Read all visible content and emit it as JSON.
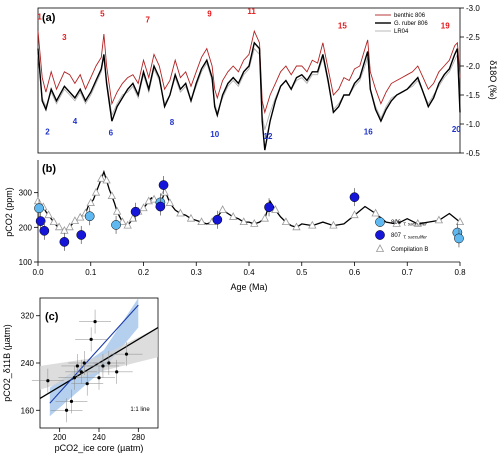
{
  "figure": {
    "panel_labels": [
      "(a)",
      "(b)",
      "(c)"
    ]
  },
  "chart_data": [
    {
      "panel": "(a)",
      "type": "line",
      "x_range": [
        0,
        0.8
      ],
      "y_label": "δ18O (‰)",
      "y_range": [
        -3.0,
        -0.5
      ],
      "y_reversed": true,
      "y_ticks": [
        -3.0,
        -2.5,
        -2.0,
        -1.5,
        -1.0,
        -0.5
      ],
      "legend_position": "top-right",
      "colors": {
        "benthic": "#b22222",
        "ruber": "#000000",
        "lr04": "#b0b0b0",
        "mis_even": "#1f33c9",
        "mis_odd": "#e31a1c"
      },
      "series": [
        {
          "name": "benthic 806",
          "x": [
            0.0,
            0.008,
            0.015,
            0.025,
            0.035,
            0.05,
            0.06,
            0.07,
            0.08,
            0.09,
            0.1,
            0.11,
            0.12,
            0.125,
            0.13,
            0.14,
            0.15,
            0.16,
            0.17,
            0.18,
            0.19,
            0.2,
            0.21,
            0.22,
            0.23,
            0.24,
            0.25,
            0.26,
            0.27,
            0.28,
            0.29,
            0.3,
            0.31,
            0.32,
            0.33,
            0.335,
            0.34,
            0.35,
            0.36,
            0.37,
            0.38,
            0.39,
            0.4,
            0.41,
            0.42,
            0.425,
            0.43,
            0.44,
            0.45,
            0.46,
            0.47,
            0.48,
            0.49,
            0.5,
            0.51,
            0.52,
            0.53,
            0.54,
            0.55,
            0.56,
            0.57,
            0.58,
            0.59,
            0.6,
            0.61,
            0.62,
            0.625,
            0.63,
            0.64,
            0.65,
            0.66,
            0.67,
            0.68,
            0.69,
            0.7,
            0.71,
            0.72,
            0.73,
            0.74,
            0.75,
            0.76,
            0.77,
            0.78,
            0.79,
            0.795,
            0.8
          ],
          "y": [
            -2.6,
            -1.8,
            -1.55,
            -1.9,
            -1.6,
            -1.9,
            -1.85,
            -1.7,
            -1.85,
            -1.6,
            -1.8,
            -2.0,
            -2.15,
            -2.55,
            -2.0,
            -1.35,
            -1.55,
            -1.7,
            -1.8,
            -1.85,
            -1.7,
            -2.1,
            -1.8,
            -2.2,
            -2.0,
            -1.6,
            -1.75,
            -2.1,
            -1.8,
            -1.9,
            -1.65,
            -1.9,
            -2.15,
            -2.3,
            -2.0,
            -1.6,
            -1.45,
            -1.75,
            -1.9,
            -2.0,
            -1.9,
            -2.1,
            -2.2,
            -2.6,
            -2.4,
            -1.4,
            -1.2,
            -1.5,
            -1.7,
            -1.9,
            -2.0,
            -1.85,
            -2.0,
            -2.0,
            -1.9,
            -2.1,
            -2.05,
            -2.4,
            -1.95,
            -1.5,
            -1.6,
            -1.8,
            -1.75,
            -1.95,
            -2.0,
            -2.3,
            -2.45,
            -1.9,
            -1.6,
            -1.35,
            -1.55,
            -1.7,
            -1.75,
            -1.8,
            -1.85,
            -1.9,
            -2.0,
            -1.8,
            -1.6,
            -1.7,
            -1.9,
            -2.0,
            -2.1,
            -2.35,
            -2.4,
            -1.8
          ]
        },
        {
          "name": "G. ruber 806",
          "x": [
            0.0,
            0.008,
            0.015,
            0.025,
            0.035,
            0.05,
            0.06,
            0.07,
            0.08,
            0.09,
            0.1,
            0.11,
            0.12,
            0.125,
            0.13,
            0.14,
            0.15,
            0.16,
            0.17,
            0.18,
            0.19,
            0.2,
            0.21,
            0.22,
            0.23,
            0.24,
            0.25,
            0.26,
            0.27,
            0.28,
            0.29,
            0.3,
            0.31,
            0.32,
            0.33,
            0.335,
            0.34,
            0.35,
            0.36,
            0.37,
            0.38,
            0.39,
            0.4,
            0.41,
            0.42,
            0.425,
            0.43,
            0.44,
            0.45,
            0.46,
            0.47,
            0.48,
            0.49,
            0.5,
            0.51,
            0.52,
            0.53,
            0.54,
            0.55,
            0.56,
            0.57,
            0.58,
            0.59,
            0.6,
            0.61,
            0.62,
            0.625,
            0.63,
            0.64,
            0.65,
            0.66,
            0.67,
            0.68,
            0.69,
            0.7,
            0.71,
            0.72,
            0.73,
            0.74,
            0.75,
            0.76,
            0.77,
            0.78,
            0.79,
            0.795,
            0.8
          ],
          "y": [
            -2.3,
            -1.4,
            -1.25,
            -1.6,
            -1.4,
            -1.65,
            -1.55,
            -1.45,
            -1.6,
            -1.4,
            -1.55,
            -1.75,
            -1.95,
            -2.2,
            -1.7,
            -1.05,
            -1.3,
            -1.45,
            -1.6,
            -1.7,
            -1.5,
            -1.9,
            -1.6,
            -2.0,
            -1.8,
            -1.3,
            -1.5,
            -1.85,
            -1.6,
            -1.7,
            -1.4,
            -1.7,
            -1.95,
            -2.1,
            -1.8,
            -1.3,
            -1.15,
            -1.5,
            -1.7,
            -1.8,
            -1.7,
            -1.9,
            -2.0,
            -2.4,
            -2.3,
            -1.05,
            -0.55,
            -1.05,
            -1.4,
            -1.65,
            -1.75,
            -1.6,
            -1.8,
            -1.85,
            -1.75,
            -1.9,
            -1.9,
            -2.2,
            -1.75,
            -1.2,
            -1.3,
            -1.5,
            -1.5,
            -1.7,
            -1.8,
            -2.1,
            -2.25,
            -1.6,
            -1.25,
            -1.05,
            -1.25,
            -1.4,
            -1.5,
            -1.55,
            -1.6,
            -1.7,
            -1.8,
            -1.55,
            -1.3,
            -1.45,
            -1.7,
            -1.85,
            -1.95,
            -2.2,
            -2.3,
            -1.2
          ]
        },
        {
          "name": "LR04",
          "x": [
            0.0,
            0.008,
            0.015,
            0.025,
            0.035,
            0.05,
            0.06,
            0.07,
            0.08,
            0.09,
            0.1,
            0.11,
            0.12,
            0.125,
            0.13,
            0.14,
            0.15,
            0.16,
            0.17,
            0.18,
            0.19,
            0.2,
            0.21,
            0.22,
            0.23,
            0.24,
            0.25,
            0.26,
            0.27,
            0.28,
            0.29,
            0.3,
            0.31,
            0.32,
            0.33,
            0.335,
            0.34,
            0.35,
            0.36,
            0.37,
            0.38,
            0.39,
            0.4,
            0.41,
            0.42,
            0.425,
            0.43,
            0.44,
            0.45,
            0.46,
            0.47,
            0.48,
            0.49,
            0.5,
            0.51,
            0.52,
            0.53,
            0.54,
            0.55,
            0.56,
            0.57,
            0.58,
            0.59,
            0.6,
            0.61,
            0.62,
            0.625,
            0.63,
            0.64,
            0.65,
            0.66,
            0.67,
            0.68,
            0.69,
            0.7,
            0.71,
            0.72,
            0.73,
            0.74,
            0.75,
            0.76,
            0.77,
            0.78,
            0.79,
            0.795,
            0.8
          ],
          "y": [
            -2.2,
            -1.45,
            -1.3,
            -1.55,
            -1.35,
            -1.6,
            -1.5,
            -1.4,
            -1.55,
            -1.35,
            -1.5,
            -1.7,
            -1.9,
            -2.15,
            -1.75,
            -1.15,
            -1.35,
            -1.5,
            -1.55,
            -1.65,
            -1.45,
            -1.85,
            -1.55,
            -1.95,
            -1.75,
            -1.35,
            -1.5,
            -1.8,
            -1.55,
            -1.65,
            -1.4,
            -1.65,
            -1.9,
            -2.05,
            -1.75,
            -1.35,
            -1.2,
            -1.45,
            -1.65,
            -1.75,
            -1.65,
            -1.85,
            -1.95,
            -2.3,
            -2.2,
            -1.15,
            -0.9,
            -1.2,
            -1.45,
            -1.65,
            -1.75,
            -1.6,
            -1.75,
            -1.8,
            -1.7,
            -1.85,
            -1.85,
            -2.15,
            -1.7,
            -1.25,
            -1.35,
            -1.5,
            -1.5,
            -1.65,
            -1.75,
            -2.0,
            -2.15,
            -1.6,
            -1.3,
            -1.1,
            -1.3,
            -1.45,
            -1.5,
            -1.55,
            -1.6,
            -1.65,
            -1.75,
            -1.55,
            -1.35,
            -1.5,
            -1.65,
            -1.8,
            -1.9,
            -2.1,
            -2.2,
            -1.3
          ]
        }
      ],
      "annotations": [
        {
          "text": "1",
          "x": 0.003,
          "y": -2.8,
          "kind": "odd"
        },
        {
          "text": "3",
          "x": 0.05,
          "y": -2.45,
          "kind": "odd"
        },
        {
          "text": "5",
          "x": 0.122,
          "y": -2.85,
          "kind": "odd"
        },
        {
          "text": "7",
          "x": 0.208,
          "y": -2.75,
          "kind": "odd"
        },
        {
          "text": "9",
          "x": 0.325,
          "y": -2.85,
          "kind": "odd"
        },
        {
          "text": "11",
          "x": 0.405,
          "y": -2.9,
          "kind": "odd"
        },
        {
          "text": "15",
          "x": 0.577,
          "y": -2.65,
          "kind": "odd"
        },
        {
          "text": "19",
          "x": 0.772,
          "y": -2.65,
          "kind": "odd"
        },
        {
          "text": "2",
          "x": 0.018,
          "y": -0.82,
          "kind": "even"
        },
        {
          "text": "4",
          "x": 0.07,
          "y": -1.0,
          "kind": "even"
        },
        {
          "text": "6",
          "x": 0.138,
          "y": -0.8,
          "kind": "even"
        },
        {
          "text": "8",
          "x": 0.254,
          "y": -0.98,
          "kind": "even"
        },
        {
          "text": "10",
          "x": 0.335,
          "y": -0.78,
          "kind": "even"
        },
        {
          "text": "12",
          "x": 0.436,
          "y": -0.74,
          "kind": "even"
        },
        {
          "text": "16",
          "x": 0.626,
          "y": -0.82,
          "kind": "even"
        },
        {
          "text": "20",
          "x": 0.793,
          "y": -0.86,
          "kind": "even"
        }
      ]
    },
    {
      "panel": "(b)",
      "type": "scatter",
      "xlabel": "Age (Ma)",
      "ylabel": "pCO2 (ppm)",
      "x_range": [
        0,
        0.8
      ],
      "x_ticks": [
        0.0,
        0.1,
        0.2,
        0.3,
        0.4,
        0.5,
        0.6,
        0.7,
        0.8
      ],
      "y_range": [
        100,
        400
      ],
      "y_ticks": [
        100,
        200,
        300
      ],
      "legend_position": "bottom-right",
      "colors": {
        "site806": "#5fb8f0",
        "site807": "#1616d8",
        "compilation": "#9a9a9a"
      },
      "series": [
        {
          "name": "806",
          "subscript": "T. sacculifer",
          "marker": "circle",
          "x": [
            0.002,
            0.098,
            0.148,
            0.232,
            0.795,
            0.798
          ],
          "y": [
            255,
            232,
            207,
            272,
            185,
            168
          ]
        },
        {
          "name": "807",
          "subscript": "T. sacculifer",
          "marker": "circle",
          "x": [
            0.005,
            0.012,
            0.05,
            0.082,
            0.185,
            0.232,
            0.238,
            0.34,
            0.438,
            0.6
          ],
          "y": [
            218,
            190,
            158,
            178,
            245,
            260,
            322,
            222,
            258,
            287
          ]
        },
        {
          "name": "Compilation B",
          "marker": "open-triangle",
          "style": "line+markers",
          "x": [
            0.0,
            0.005,
            0.01,
            0.015,
            0.02,
            0.025,
            0.03,
            0.035,
            0.04,
            0.045,
            0.05,
            0.055,
            0.06,
            0.065,
            0.07,
            0.075,
            0.08,
            0.085,
            0.09,
            0.095,
            0.1,
            0.105,
            0.11,
            0.115,
            0.12,
            0.125,
            0.13,
            0.135,
            0.14,
            0.145,
            0.15,
            0.155,
            0.16,
            0.165,
            0.17,
            0.175,
            0.18,
            0.185,
            0.19,
            0.195,
            0.2,
            0.205,
            0.21,
            0.215,
            0.22,
            0.225,
            0.23,
            0.235,
            0.24,
            0.245,
            0.25,
            0.26,
            0.27,
            0.28,
            0.29,
            0.3,
            0.31,
            0.32,
            0.33,
            0.34,
            0.35,
            0.36,
            0.37,
            0.38,
            0.39,
            0.4,
            0.41,
            0.42,
            0.43,
            0.44,
            0.45,
            0.46,
            0.47,
            0.48,
            0.49,
            0.5,
            0.52,
            0.54,
            0.56,
            0.58,
            0.6,
            0.62,
            0.64,
            0.66,
            0.68,
            0.7,
            0.72,
            0.74,
            0.76,
            0.78,
            0.8
          ],
          "y": [
            275,
            265,
            258,
            245,
            235,
            225,
            215,
            205,
            200,
            195,
            190,
            195,
            200,
            210,
            218,
            222,
            228,
            235,
            240,
            260,
            270,
            280,
            300,
            320,
            340,
            360,
            335,
            310,
            290,
            270,
            245,
            230,
            215,
            210,
            205,
            215,
            225,
            235,
            245,
            250,
            255,
            265,
            275,
            285,
            280,
            270,
            265,
            280,
            300,
            290,
            270,
            250,
            240,
            235,
            225,
            220,
            215,
            210,
            215,
            230,
            250,
            240,
            230,
            225,
            215,
            215,
            210,
            215,
            225,
            275,
            250,
            230,
            215,
            205,
            200,
            210,
            205,
            215,
            205,
            210,
            235,
            260,
            240,
            215,
            210,
            225,
            210,
            215,
            220,
            240,
            215
          ]
        }
      ]
    },
    {
      "panel": "(c)",
      "type": "scatter",
      "xlabel": "pCO2_ice core (µatm)",
      "ylabel": "pCO2_δ11B (µatm)",
      "x_range": [
        180,
        300
      ],
      "x_ticks": [
        200,
        240,
        280
      ],
      "y_range": [
        130,
        350
      ],
      "y_ticks": [
        160,
        240,
        320
      ],
      "annotation": "1:1 line",
      "colors": {
        "points": "#000000",
        "fit": "#1a3aa8",
        "band_blue": "#a8c8ec",
        "band_grey": "#d2d2d2"
      },
      "points": {
        "x": [
          188,
          207,
          212,
          215,
          218,
          222,
          225,
          228,
          232,
          236,
          240,
          244,
          250,
          258,
          268
        ],
        "y": [
          210,
          160,
          175,
          215,
          235,
          225,
          240,
          205,
          280,
          310,
          215,
          235,
          240,
          225,
          255
        ]
      },
      "regression": {
        "x": [
          190,
          280
        ],
        "y": [
          172,
          338
        ]
      },
      "one_to_one": {
        "x": [
          180,
          300
        ],
        "y": [
          180,
          300
        ]
      }
    }
  ]
}
